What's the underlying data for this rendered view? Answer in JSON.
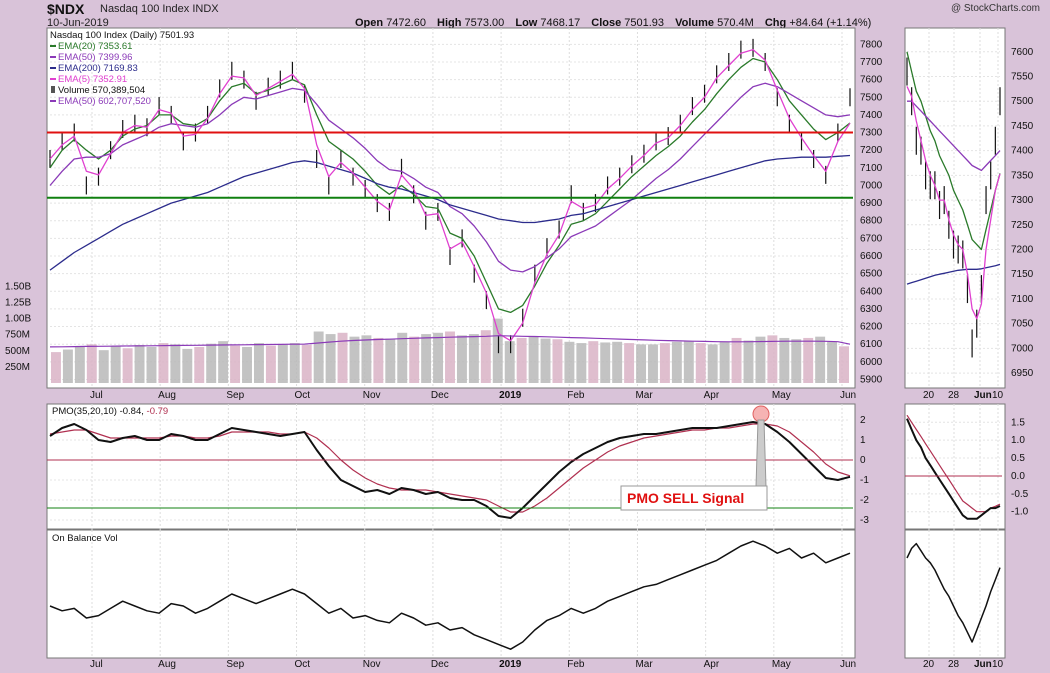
{
  "header": {
    "symbol": "$NDX",
    "name": "Nasdaq 100 Index  INDX",
    "date": "10-Jun-2019",
    "open_label": "Open",
    "open": "7472.60",
    "high_label": "High",
    "high": "7573.00",
    "low_label": "Low",
    "low": "7468.17",
    "close_label": "Close",
    "close": "7501.93",
    "volume_label": "Volume",
    "volume": "570.4M",
    "chg_label": "Chg",
    "chg": "+84.64 (+1.14%)",
    "copyright": "@ StockCharts.com"
  },
  "legend": {
    "price_title": "Nasdaq 100 Index (Daily) 7501.93",
    "ema20": "EMA(20) 7353.61",
    "ema50": "EMA(50) 7399.96",
    "ema200": "EMA(200) 7169.83",
    "ema5": "EMA(5) 7352.91",
    "volume": "Volume 570,389,504",
    "vol_ema50": "EMA(50) 602,707,520",
    "pmo_title": "PMO(35,20,10) -0.84,",
    "pmo_signal": "-0.79",
    "obv_title": "On Balance Vol",
    "annotation": "PMO SELL Signal"
  },
  "colors": {
    "ema20": "#2a7a2a",
    "ema50": "#8b3ab8",
    "ema200": "#2c2c8c",
    "ema5": "#e040d0",
    "hline_red": "#e01010",
    "hline_green": "#108010",
    "volume_bar": "#b8b8b8",
    "volume_bar_up": "#d9b3c6",
    "pmo_signal": "#b03050",
    "annotation": "#e01010"
  },
  "chart_data": [
    {
      "type": "line",
      "title": "Nasdaq 100 Index (Daily) 7501.93",
      "x_labels": [
        "Jul",
        "Aug",
        "Sep",
        "Oct",
        "Nov",
        "Dec",
        "2019",
        "Feb",
        "Mar",
        "Apr",
        "May",
        "Jun"
      ],
      "y_ticks": [
        5900,
        6000,
        6100,
        6200,
        6300,
        6400,
        6500,
        6600,
        6700,
        6800,
        6900,
        7000,
        7100,
        7200,
        7300,
        7400,
        7500,
        7600,
        7700,
        7800
      ],
      "ylim": [
        5880,
        7870
      ],
      "horizontal_lines": [
        7300,
        6930
      ],
      "series": [
        {
          "name": "Nasdaq 100 Index (Daily)",
          "values": [
            7150,
            7250,
            7300,
            7000,
            7050,
            7200,
            7320,
            7350,
            7330,
            7450,
            7400,
            7250,
            7300,
            7400,
            7550,
            7650,
            7600,
            7480,
            7560,
            7600,
            7650,
            7520,
            7150,
            7000,
            7150,
            7050,
            6980,
            6900,
            6850,
            7100,
            6950,
            6800,
            6850,
            6600,
            6700,
            6500,
            6350,
            6100,
            6100,
            6250,
            6500,
            6650,
            6750,
            6950,
            6850,
            6900,
            7000,
            7050,
            7120,
            7180,
            7250,
            7280,
            7350,
            7450,
            7520,
            7630,
            7700,
            7770,
            7780,
            7700,
            7500,
            7350,
            7250,
            7150,
            7060,
            7300,
            7500
          ]
        },
        {
          "name": "EMA(20) 7353.61",
          "values": [
            7100,
            7200,
            7260,
            7200,
            7150,
            7200,
            7280,
            7320,
            7340,
            7400,
            7400,
            7350,
            7340,
            7380,
            7480,
            7560,
            7580,
            7520,
            7540,
            7570,
            7600,
            7570,
            7400,
            7250,
            7200,
            7150,
            7080,
            7000,
            6950,
            7000,
            6950,
            6880,
            6870,
            6730,
            6700,
            6600,
            6450,
            6300,
            6280,
            6320,
            6430,
            6560,
            6660,
            6780,
            6800,
            6840,
            6910,
            6980,
            7050,
            7110,
            7170,
            7220,
            7280,
            7360,
            7430,
            7520,
            7600,
            7670,
            7720,
            7700,
            7600,
            7480,
            7400,
            7320,
            7260,
            7300,
            7354
          ]
        },
        {
          "name": "EMA(50) 7399.96",
          "values": [
            7000,
            7080,
            7150,
            7160,
            7160,
            7180,
            7230,
            7260,
            7290,
            7330,
            7350,
            7340,
            7330,
            7350,
            7400,
            7460,
            7500,
            7490,
            7510,
            7530,
            7550,
            7540,
            7460,
            7370,
            7320,
            7270,
            7210,
            7140,
            7090,
            7080,
            7040,
            6990,
            6960,
            6880,
            6840,
            6770,
            6680,
            6570,
            6520,
            6510,
            6540,
            6590,
            6640,
            6710,
            6740,
            6770,
            6820,
            6870,
            6920,
            6980,
            7040,
            7090,
            7150,
            7220,
            7290,
            7360,
            7430,
            7500,
            7560,
            7580,
            7560,
            7520,
            7480,
            7440,
            7400,
            7390,
            7400
          ]
        },
        {
          "name": "EMA(200) 7169.83",
          "values": [
            6520,
            6570,
            6620,
            6660,
            6700,
            6740,
            6780,
            6810,
            6840,
            6870,
            6900,
            6920,
            6940,
            6960,
            6990,
            7020,
            7050,
            7070,
            7090,
            7110,
            7130,
            7140,
            7130,
            7110,
            7090,
            7070,
            7040,
            7010,
            6990,
            6980,
            6960,
            6940,
            6920,
            6890,
            6870,
            6850,
            6830,
            6810,
            6800,
            6790,
            6790,
            6800,
            6810,
            6830,
            6840,
            6860,
            6880,
            6900,
            6920,
            6940,
            6960,
            6980,
            7000,
            7020,
            7040,
            7060,
            7080,
            7100,
            7120,
            7140,
            7150,
            7155,
            7160,
            7160,
            7160,
            7165,
            7170
          ]
        },
        {
          "name": "EMA(5) 7352.91",
          "values": [
            7150,
            7230,
            7280,
            7080,
            7060,
            7180,
            7300,
            7340,
            7330,
            7430,
            7410,
            7280,
            7290,
            7380,
            7520,
            7620,
            7610,
            7510,
            7550,
            7590,
            7630,
            7550,
            7230,
            7050,
            7130,
            7070,
            6990,
            6910,
            6860,
            7060,
            6980,
            6830,
            6840,
            6640,
            6680,
            6540,
            6390,
            6160,
            6120,
            6220,
            6450,
            6610,
            6720,
            6910,
            6870,
            6890,
            6980,
            7040,
            7110,
            7170,
            7240,
            7270,
            7340,
            7430,
            7500,
            7610,
            7680,
            7750,
            7770,
            7710,
            7540,
            7380,
            7270,
            7170,
            7080,
            7250,
            7353
          ]
        }
      ]
    },
    {
      "type": "bar",
      "title": "Volume 570,389,504",
      "y_ticks": [
        "250M",
        "500M",
        "750M",
        "1.00B",
        "1.25B",
        "1.50B"
      ],
      "ylim": [
        0,
        1600
      ],
      "series": [
        {
          "name": "Volume",
          "values": [
            480,
            520,
            560,
            600,
            510,
            580,
            540,
            590,
            560,
            620,
            600,
            530,
            560,
            610,
            650,
            580,
            560,
            620,
            580,
            600,
            620,
            590,
            800,
            760,
            780,
            720,
            740,
            700,
            690,
            780,
            720,
            760,
            780,
            800,
            740,
            760,
            820,
            1000,
            650,
            700,
            720,
            690,
            680,
            640,
            620,
            650,
            630,
            640,
            620,
            600,
            600,
            620,
            640,
            650,
            620,
            600,
            640,
            700,
            660,
            720,
            740,
            700,
            680,
            700,
            720,
            640,
            570
          ]
        },
        {
          "name": "EMA(50) 602,707,520",
          "values": [
            560,
            562,
            565,
            568,
            570,
            572,
            574,
            576,
            578,
            580,
            582,
            584,
            586,
            588,
            590,
            592,
            594,
            596,
            598,
            600,
            602,
            604,
            620,
            635,
            650,
            660,
            668,
            675,
            680,
            688,
            694,
            700,
            706,
            712,
            716,
            720,
            726,
            735,
            730,
            726,
            722,
            718,
            712,
            706,
            700,
            694,
            688,
            682,
            676,
            670,
            664,
            658,
            654,
            650,
            646,
            642,
            640,
            640,
            642,
            645,
            648,
            650,
            650,
            650,
            648,
            642,
            603
          ]
        }
      ]
    },
    {
      "type": "line",
      "title": "PMO(35,20,10) -0.84, -0.79",
      "y_ticks": [
        -3,
        -2,
        -1,
        0,
        1,
        2
      ],
      "ylim": [
        -3.3,
        2.6
      ],
      "horizontal_lines": [
        0,
        -2.4
      ],
      "annotations": [
        "PMO SELL Signal"
      ],
      "series": [
        {
          "name": "PMO(35,20,10)",
          "values": [
            1.2,
            1.6,
            1.8,
            1.5,
            1.0,
            0.9,
            1.1,
            1.2,
            1.0,
            1.0,
            1.3,
            1.2,
            1.0,
            1.0,
            1.3,
            1.6,
            1.5,
            1.4,
            1.3,
            1.2,
            1.3,
            1.4,
            0.5,
            -0.3,
            -1.0,
            -1.3,
            -1.6,
            -1.5,
            -1.7,
            -1.4,
            -1.5,
            -1.7,
            -1.6,
            -1.9,
            -2.0,
            -2.0,
            -2.3,
            -2.8,
            -2.9,
            -2.4,
            -1.8,
            -1.2,
            -0.6,
            -0.1,
            0.3,
            0.6,
            0.9,
            1.1,
            1.2,
            1.3,
            1.3,
            1.4,
            1.5,
            1.6,
            1.6,
            1.6,
            1.7,
            1.8,
            1.9,
            1.8,
            1.4,
            0.9,
            0.3,
            -0.3,
            -0.9,
            -1.0,
            -0.84
          ]
        },
        {
          "name": "Signal",
          "values": [
            1.3,
            1.4,
            1.5,
            1.5,
            1.3,
            1.1,
            1.1,
            1.1,
            1.1,
            1.1,
            1.2,
            1.2,
            1.1,
            1.1,
            1.2,
            1.4,
            1.4,
            1.4,
            1.4,
            1.3,
            1.3,
            1.4,
            1.1,
            0.6,
            0.0,
            -0.5,
            -0.9,
            -1.2,
            -1.4,
            -1.5,
            -1.5,
            -1.5,
            -1.6,
            -1.7,
            -1.8,
            -1.9,
            -2.0,
            -2.3,
            -2.6,
            -2.6,
            -2.3,
            -1.9,
            -1.4,
            -0.9,
            -0.4,
            0.0,
            0.4,
            0.7,
            0.9,
            1.1,
            1.2,
            1.3,
            1.4,
            1.5,
            1.5,
            1.6,
            1.6,
            1.7,
            1.8,
            1.8,
            1.7,
            1.4,
            0.9,
            0.4,
            -0.2,
            -0.6,
            -0.79
          ]
        }
      ]
    },
    {
      "type": "line",
      "title": "On Balance Vol",
      "ylim": [
        0,
        100
      ],
      "series": [
        {
          "name": "On Balance Vol",
          "values": [
            40,
            36,
            38,
            30,
            32,
            38,
            44,
            40,
            36,
            34,
            42,
            40,
            34,
            38,
            44,
            50,
            46,
            42,
            46,
            50,
            54,
            50,
            42,
            34,
            38,
            30,
            32,
            28,
            26,
            34,
            30,
            24,
            26,
            20,
            22,
            16,
            12,
            8,
            4,
            10,
            20,
            28,
            32,
            38,
            34,
            38,
            44,
            48,
            52,
            56,
            58,
            62,
            66,
            70,
            74,
            78,
            84,
            90,
            94,
            90,
            84,
            88,
            80,
            84,
            76,
            80,
            84
          ]
        }
      ]
    },
    {
      "type": "line",
      "title": "",
      "x_labels": [
        "20",
        "28",
        "Jun",
        "10"
      ],
      "y_ticks": [
        6950,
        7000,
        7050,
        7100,
        7150,
        7200,
        7250,
        7300,
        7350,
        7400,
        7450,
        7500,
        7550,
        7600
      ],
      "ylim": [
        6930,
        7640
      ],
      "series": [
        {
          "name": "Nasdaq 100 Index (Daily)",
          "values": [
            7560,
            7500,
            7420,
            7400,
            7350,
            7330,
            7330,
            7290,
            7300,
            7250,
            7210,
            7200,
            7190,
            7120,
            7010,
            7050,
            7120,
            7300,
            7350,
            7420,
            7500
          ]
        },
        {
          "name": "EMA(20)",
          "values": [
            7600,
            7560,
            7520,
            7500,
            7470,
            7440,
            7420,
            7390,
            7370,
            7350,
            7320,
            7300,
            7280,
            7250,
            7220,
            7210,
            7200,
            7240,
            7280,
            7320,
            7354
          ]
        },
        {
          "name": "EMA(50)",
          "values": [
            7500,
            7500,
            7490,
            7480,
            7470,
            7460,
            7450,
            7440,
            7430,
            7420,
            7410,
            7400,
            7390,
            7380,
            7370,
            7365,
            7360,
            7370,
            7380,
            7390,
            7400
          ]
        },
        {
          "name": "EMA(200)",
          "values": [
            7130,
            7133,
            7136,
            7139,
            7142,
            7145,
            7148,
            7150,
            7152,
            7154,
            7156,
            7158,
            7159,
            7160,
            7160,
            7160,
            7161,
            7163,
            7165,
            7167,
            7170
          ]
        },
        {
          "name": "EMA(5)",
          "values": [
            7530,
            7510,
            7460,
            7420,
            7380,
            7350,
            7330,
            7300,
            7300,
            7260,
            7230,
            7210,
            7200,
            7150,
            7080,
            7060,
            7090,
            7200,
            7260,
            7320,
            7353
          ]
        }
      ]
    },
    {
      "type": "line",
      "title": "",
      "y_ticks": [
        -1.0,
        -0.5,
        0.0,
        0.5,
        1.0,
        1.5
      ],
      "ylim": [
        -1.4,
        1.9
      ],
      "horizontal_lines": [
        0
      ],
      "series": [
        {
          "name": "PMO",
          "values": [
            1.6,
            1.3,
            1.0,
            0.8,
            0.5,
            0.3,
            0.1,
            -0.1,
            -0.3,
            -0.5,
            -0.7,
            -0.9,
            -1.1,
            -1.2,
            -1.2,
            -1.2,
            -1.1,
            -1.0,
            -0.9,
            -0.9,
            -0.84
          ]
        },
        {
          "name": "Signal",
          "values": [
            1.7,
            1.5,
            1.3,
            1.1,
            0.9,
            0.7,
            0.5,
            0.3,
            0.1,
            -0.1,
            -0.3,
            -0.5,
            -0.7,
            -0.8,
            -0.9,
            -1.0,
            -1.0,
            -1.0,
            -0.9,
            -0.85,
            -0.79
          ]
        }
      ]
    },
    {
      "type": "line",
      "title": "",
      "ylim": [
        0,
        100
      ],
      "series": [
        {
          "name": "On Balance Vol",
          "values": [
            80,
            88,
            92,
            86,
            80,
            76,
            70,
            62,
            54,
            48,
            40,
            32,
            26,
            18,
            10,
            20,
            30,
            40,
            52,
            62,
            72
          ]
        }
      ]
    }
  ]
}
